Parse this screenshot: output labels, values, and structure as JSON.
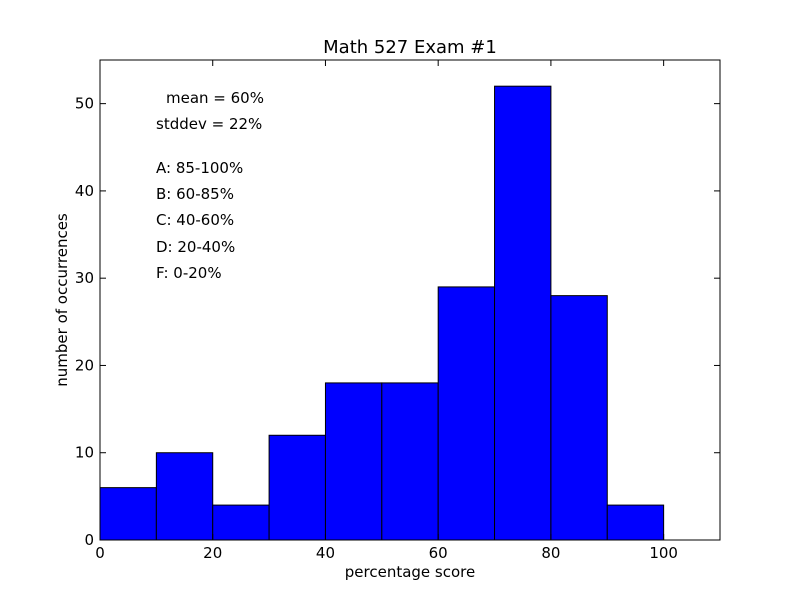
{
  "chart_data": {
    "type": "bar",
    "title": "Math 527 Exam #1",
    "xlabel": "percentage score",
    "ylabel": "number of occurrences",
    "bins": [
      {
        "start": 0,
        "end": 10,
        "count": 6
      },
      {
        "start": 10,
        "end": 20,
        "count": 10
      },
      {
        "start": 20,
        "end": 30,
        "count": 4
      },
      {
        "start": 30,
        "end": 40,
        "count": 12
      },
      {
        "start": 40,
        "end": 50,
        "count": 18
      },
      {
        "start": 50,
        "end": 60,
        "count": 18
      },
      {
        "start": 60,
        "end": 70,
        "count": 29
      },
      {
        "start": 70,
        "end": 80,
        "count": 52
      },
      {
        "start": 80,
        "end": 90,
        "count": 28
      },
      {
        "start": 90,
        "end": 100,
        "count": 4
      }
    ],
    "xlim": [
      0,
      110
    ],
    "ylim": [
      0,
      55
    ],
    "xticks": [
      0,
      20,
      40,
      60,
      80,
      100
    ],
    "yticks": [
      0,
      10,
      20,
      30,
      40,
      50
    ],
    "grid": false,
    "bar_color": "#0000ff",
    "annotations": [
      "mean = 60%",
      "stddev = 22%",
      "A: 85-100%",
      "B: 60-85%",
      "C: 40-60%",
      "D: 20-40%",
      "F: 0-20%"
    ]
  }
}
